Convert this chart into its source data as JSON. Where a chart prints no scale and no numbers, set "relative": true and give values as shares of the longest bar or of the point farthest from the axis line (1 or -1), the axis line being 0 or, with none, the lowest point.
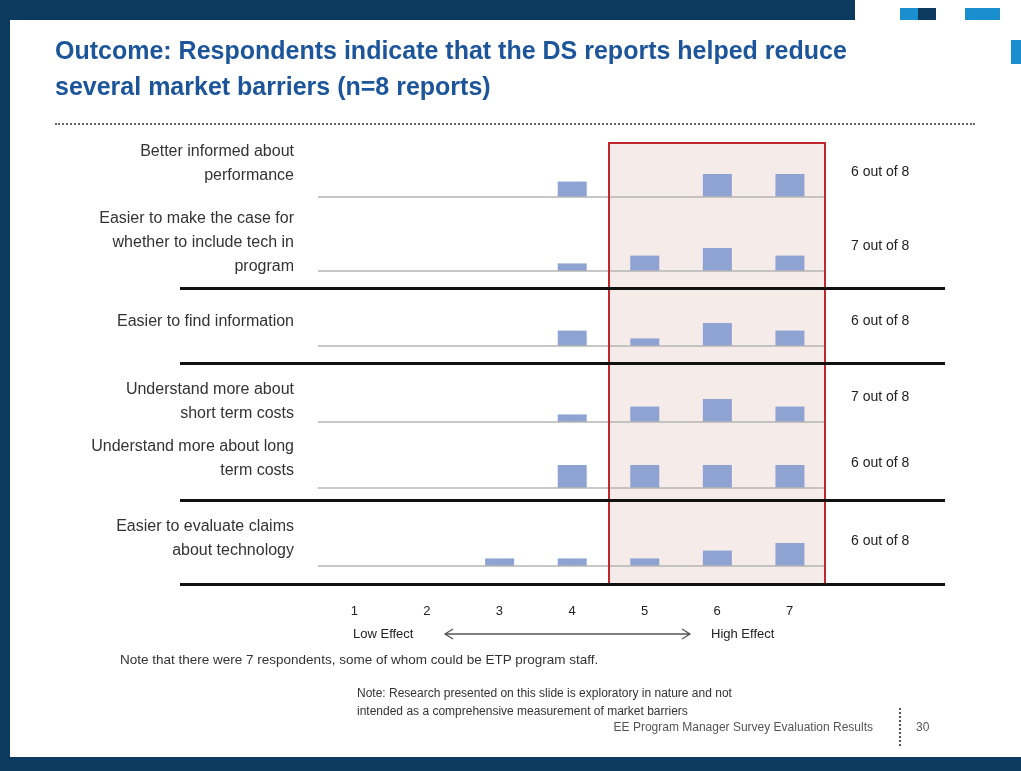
{
  "chart_data": [
    {
      "type": "bar",
      "title": "Outcome: Respondents indicate that the DS reports helped reduce several market barriers (n=8 reports)",
      "ylabel": "Better informed about performance",
      "x": [
        1,
        2,
        3,
        4,
        5,
        6,
        7
      ],
      "values": [
        0,
        0,
        0,
        0.67,
        0,
        1,
        1
      ],
      "color": "#8fa3d3",
      "relative": true,
      "xlim": [
        0.5,
        7.5
      ],
      "xticks": [
        1,
        2,
        3,
        4,
        5,
        6,
        7
      ],
      "tick_labels": false,
      "bands": [
        {
          "axis": "x",
          "from": 4.5,
          "to": 7.5,
          "color": "#f5ebe9"
        }
      ],
      "annotations": [
        "6 out of 8"
      ]
    },
    {
      "type": "bar",
      "ylabel": "Easier to make the case for whether to include tech in program",
      "x": [
        1,
        2,
        3,
        4,
        5,
        6,
        7
      ],
      "values": [
        0,
        0,
        0,
        0.33,
        0.67,
        1,
        0.67
      ],
      "color": "#8fa3d3",
      "relative": true,
      "xlim": [
        0.5,
        7.5
      ],
      "xticks": [
        1,
        2,
        3,
        4,
        5,
        6,
        7
      ],
      "tick_labels": false,
      "bands": [
        {
          "axis": "x",
          "from": 4.5,
          "to": 7.5,
          "color": "#f5ebe9"
        }
      ],
      "annotations": [
        "7 out of 8"
      ]
    },
    {
      "type": "bar",
      "ylabel": "Easier to find information",
      "x": [
        1,
        2,
        3,
        4,
        5,
        6,
        7
      ],
      "values": [
        0,
        0,
        0,
        0.67,
        0.33,
        1,
        0.67
      ],
      "color": "#8fa3d3",
      "relative": true,
      "xlim": [
        0.5,
        7.5
      ],
      "xticks": [
        1,
        2,
        3,
        4,
        5,
        6,
        7
      ],
      "tick_labels": false,
      "bands": [
        {
          "axis": "x",
          "from": 4.5,
          "to": 7.5,
          "color": "#f5ebe9"
        }
      ],
      "annotations": [
        "6 out of 8"
      ]
    },
    {
      "type": "bar",
      "ylabel": "Understand more about short term costs",
      "x": [
        1,
        2,
        3,
        4,
        5,
        6,
        7
      ],
      "values": [
        0,
        0,
        0,
        0.33,
        0.67,
        1,
        0.67
      ],
      "color": "#8fa3d3",
      "relative": true,
      "xlim": [
        0.5,
        7.5
      ],
      "xticks": [
        1,
        2,
        3,
        4,
        5,
        6,
        7
      ],
      "tick_labels": false,
      "bands": [
        {
          "axis": "x",
          "from": 4.5,
          "to": 7.5,
          "color": "#f5ebe9"
        }
      ],
      "annotations": [
        "7 out of 8"
      ]
    },
    {
      "type": "bar",
      "ylabel": "Understand more about long term costs",
      "x": [
        1,
        2,
        3,
        4,
        5,
        6,
        7
      ],
      "values": [
        0,
        0,
        0,
        1,
        1,
        1,
        1
      ],
      "color": "#8fa3d3",
      "relative": true,
      "xlim": [
        0.5,
        7.5
      ],
      "xticks": [
        1,
        2,
        3,
        4,
        5,
        6,
        7
      ],
      "tick_labels": false,
      "bands": [
        {
          "axis": "x",
          "from": 4.5,
          "to": 7.5,
          "color": "#f5ebe9"
        }
      ],
      "annotations": [
        "6 out of 8"
      ]
    },
    {
      "type": "bar",
      "ylabel": "Easier to evaluate claims about technology",
      "x": [
        1,
        2,
        3,
        4,
        5,
        6,
        7
      ],
      "values": [
        0,
        0,
        0.33,
        0.33,
        0.33,
        0.67,
        1
      ],
      "color": "#8fa3d3",
      "relative": true,
      "xlim": [
        0.5,
        7.5
      ],
      "xticks": [
        1,
        2,
        3,
        4,
        5,
        6,
        7
      ],
      "bands": [
        {
          "axis": "x",
          "from": 4.5,
          "to": 7.5,
          "color": "#f5ebe9"
        }
      ],
      "annotations": [
        "6 out of 8",
        "Low Effect",
        "High Effect",
        "Note that there were 7 respondents, some of whom could be ETP program staff.",
        "Note: Research presented on this slide is exploratory in nature and not intended as a comprehensive measurement of market barriers",
        "EE Program Manager Survey Evaluation Results",
        "30"
      ]
    }
  ]
}
